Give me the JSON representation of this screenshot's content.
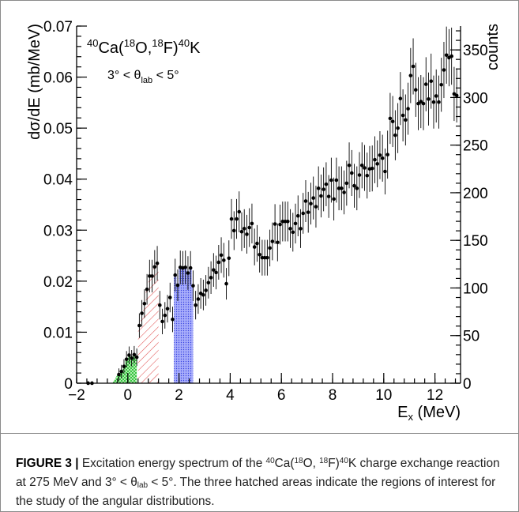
{
  "chart_data": {
    "type": "scatter",
    "title_reaction": {
      "a": "40",
      "b": "Ca(",
      "c": "18",
      "d": "O,",
      "e": "18",
      "f": "F)",
      "g": "40",
      "h": "K"
    },
    "angle_label": {
      "pre": "3° < θ",
      "sub": "lab",
      "post": " < 5°"
    },
    "xlabel": {
      "main": "E",
      "sub": "x",
      "unit": " (MeV)"
    },
    "ylabel": "dσ/dE (mb/MeV)",
    "y2label": "counts",
    "xlim": [
      -2,
      13
    ],
    "ylim": [
      0,
      0.07
    ],
    "y2lim": [
      0,
      375
    ],
    "x_ticks": [
      -2,
      0,
      2,
      4,
      6,
      8,
      10,
      12
    ],
    "y_ticks": [
      0,
      0.01,
      0.02,
      0.03,
      0.04,
      0.05,
      0.06,
      0.07
    ],
    "y_tick_labels": [
      "0",
      "0.01",
      "0.02",
      "0.03",
      "0.04",
      "0.05",
      "0.06",
      "0.07"
    ],
    "y2_ticks": [
      0,
      50,
      100,
      150,
      200,
      250,
      300,
      350
    ],
    "grid": false,
    "hatched_regions": [
      {
        "x": [
          -0.6,
          0.35
        ],
        "color": "#1fbf2a",
        "pattern": "cross"
      },
      {
        "x": [
          0.4,
          1.2
        ],
        "color": "#e05050",
        "pattern": "diagonal"
      },
      {
        "x": [
          1.8,
          2.55
        ],
        "color": "#3a45e0",
        "pattern": "dots"
      }
    ],
    "points": [
      [
        -1.55,
        0.0,
        0.0004
      ],
      [
        -1.4,
        0.0,
        0.0004
      ],
      [
        -0.35,
        0.0017,
        0.0012
      ],
      [
        -0.25,
        0.0023,
        0.0013
      ],
      [
        -0.15,
        0.0033,
        0.0014
      ],
      [
        -0.05,
        0.0047,
        0.0016
      ],
      [
        0.05,
        0.0055,
        0.0017
      ],
      [
        0.15,
        0.0049,
        0.0016
      ],
      [
        0.25,
        0.0056,
        0.0017
      ],
      [
        0.35,
        0.0051,
        0.0017
      ],
      [
        0.45,
        0.0113,
        0.0024
      ],
      [
        0.55,
        0.0137,
        0.0026
      ],
      [
        0.65,
        0.0156,
        0.0028
      ],
      [
        0.75,
        0.0184,
        0.003
      ],
      [
        0.85,
        0.021,
        0.0032
      ],
      [
        0.95,
        0.021,
        0.0032
      ],
      [
        1.05,
        0.0228,
        0.0033
      ],
      [
        1.15,
        0.0235,
        0.0034
      ],
      [
        1.25,
        0.0153,
        0.0028
      ],
      [
        1.35,
        0.0121,
        0.0025
      ],
      [
        1.45,
        0.0133,
        0.0026
      ],
      [
        1.55,
        0.0146,
        0.0027
      ],
      [
        1.65,
        0.0168,
        0.0029
      ],
      [
        1.75,
        0.0125,
        0.0025
      ],
      [
        1.85,
        0.0212,
        0.0032
      ],
      [
        1.95,
        0.0192,
        0.0031
      ],
      [
        2.05,
        0.0227,
        0.0033
      ],
      [
        2.15,
        0.0226,
        0.0033
      ],
      [
        2.25,
        0.0227,
        0.0033
      ],
      [
        2.35,
        0.0216,
        0.0033
      ],
      [
        2.45,
        0.0226,
        0.0033
      ],
      [
        2.55,
        0.0191,
        0.003
      ],
      [
        2.65,
        0.0153,
        0.0028
      ],
      [
        2.75,
        0.0165,
        0.0029
      ],
      [
        2.85,
        0.0176,
        0.003
      ],
      [
        2.95,
        0.0173,
        0.003
      ],
      [
        3.05,
        0.0182,
        0.003
      ],
      [
        3.15,
        0.0197,
        0.0031
      ],
      [
        3.25,
        0.0207,
        0.0032
      ],
      [
        3.35,
        0.0222,
        0.0033
      ],
      [
        3.45,
        0.0217,
        0.0033
      ],
      [
        3.55,
        0.0237,
        0.0034
      ],
      [
        3.65,
        0.0251,
        0.0035
      ],
      [
        3.75,
        0.0241,
        0.0034
      ],
      [
        3.85,
        0.0195,
        0.0031
      ],
      [
        3.95,
        0.0245,
        0.0035
      ],
      [
        4.05,
        0.0322,
        0.0039
      ],
      [
        4.15,
        0.0299,
        0.0038
      ],
      [
        4.25,
        0.0322,
        0.0039
      ],
      [
        4.35,
        0.0336,
        0.004
      ],
      [
        4.45,
        0.0297,
        0.0038
      ],
      [
        4.55,
        0.0303,
        0.0038
      ],
      [
        4.65,
        0.0292,
        0.0038
      ],
      [
        4.75,
        0.0305,
        0.0038
      ],
      [
        4.85,
        0.0313,
        0.0039
      ],
      [
        4.95,
        0.0267,
        0.0036
      ],
      [
        5.05,
        0.0274,
        0.0036
      ],
      [
        5.15,
        0.0252,
        0.0035
      ],
      [
        5.25,
        0.0246,
        0.0035
      ],
      [
        5.35,
        0.0246,
        0.0035
      ],
      [
        5.45,
        0.0246,
        0.0035
      ],
      [
        5.55,
        0.0265,
        0.0036
      ],
      [
        5.65,
        0.0278,
        0.0037
      ],
      [
        5.75,
        0.0312,
        0.0039
      ],
      [
        5.85,
        0.0276,
        0.0037
      ],
      [
        5.95,
        0.0311,
        0.0039
      ],
      [
        6.05,
        0.0317,
        0.0039
      ],
      [
        6.15,
        0.0317,
        0.0039
      ],
      [
        6.25,
        0.0317,
        0.0039
      ],
      [
        6.35,
        0.0303,
        0.0038
      ],
      [
        6.45,
        0.0296,
        0.0038
      ],
      [
        6.55,
        0.0313,
        0.0039
      ],
      [
        6.65,
        0.0328,
        0.004
      ],
      [
        6.75,
        0.0303,
        0.0038
      ],
      [
        6.85,
        0.0333,
        0.004
      ],
      [
        6.95,
        0.0357,
        0.0041
      ],
      [
        7.05,
        0.0335,
        0.004
      ],
      [
        7.15,
        0.0352,
        0.0041
      ],
      [
        7.25,
        0.0363,
        0.0042
      ],
      [
        7.35,
        0.0346,
        0.0041
      ],
      [
        7.45,
        0.0382,
        0.0043
      ],
      [
        7.55,
        0.0367,
        0.0042
      ],
      [
        7.65,
        0.038,
        0.0043
      ],
      [
        7.75,
        0.039,
        0.0043
      ],
      [
        7.85,
        0.0366,
        0.0042
      ],
      [
        7.95,
        0.0398,
        0.0044
      ],
      [
        8.05,
        0.0361,
        0.0042
      ],
      [
        8.15,
        0.0398,
        0.0044
      ],
      [
        8.25,
        0.0382,
        0.0043
      ],
      [
        8.35,
        0.0382,
        0.0043
      ],
      [
        8.45,
        0.0374,
        0.0043
      ],
      [
        8.55,
        0.0392,
        0.0044
      ],
      [
        8.65,
        0.0427,
        0.0045
      ],
      [
        8.75,
        0.0412,
        0.0045
      ],
      [
        8.85,
        0.0387,
        0.0043
      ],
      [
        8.95,
        0.0382,
        0.0043
      ],
      [
        9.05,
        0.0408,
        0.0045
      ],
      [
        9.15,
        0.0427,
        0.0045
      ],
      [
        9.25,
        0.0422,
        0.0045
      ],
      [
        9.35,
        0.0407,
        0.0045
      ],
      [
        9.45,
        0.042,
        0.0045
      ],
      [
        9.55,
        0.0421,
        0.0045
      ],
      [
        9.65,
        0.0438,
        0.0046
      ],
      [
        9.75,
        0.043,
        0.0046
      ],
      [
        9.85,
        0.0447,
        0.0047
      ],
      [
        9.95,
        0.0441,
        0.0046
      ],
      [
        10.05,
        0.0415,
        0.0045
      ],
      [
        10.15,
        0.0448,
        0.0047
      ],
      [
        10.25,
        0.0519,
        0.005
      ],
      [
        10.35,
        0.0513,
        0.005
      ],
      [
        10.45,
        0.0486,
        0.0049
      ],
      [
        10.55,
        0.05,
        0.0049
      ],
      [
        10.65,
        0.0558,
        0.0052
      ],
      [
        10.75,
        0.0525,
        0.0051
      ],
      [
        10.85,
        0.0516,
        0.005
      ],
      [
        10.95,
        0.0538,
        0.0051
      ],
      [
        11.05,
        0.0603,
        0.0054
      ],
      [
        11.15,
        0.0621,
        0.0055
      ],
      [
        11.25,
        0.0575,
        0.0053
      ],
      [
        11.35,
        0.0548,
        0.0052
      ],
      [
        11.45,
        0.0552,
        0.0052
      ],
      [
        11.55,
        0.0548,
        0.0052
      ],
      [
        11.65,
        0.0586,
        0.0053
      ],
      [
        11.75,
        0.0557,
        0.0052
      ],
      [
        11.85,
        0.0592,
        0.0054
      ],
      [
        11.95,
        0.0551,
        0.0052
      ],
      [
        12.05,
        0.0563,
        0.0052
      ],
      [
        12.15,
        0.0551,
        0.0052
      ],
      [
        12.25,
        0.0585,
        0.0053
      ],
      [
        12.35,
        0.0614,
        0.0055
      ],
      [
        12.45,
        0.0643,
        0.0056
      ],
      [
        12.55,
        0.0638,
        0.0056
      ],
      [
        12.65,
        0.0641,
        0.0056
      ],
      [
        12.75,
        0.0567,
        0.0053
      ],
      [
        12.85,
        0.0564,
        0.0053
      ]
    ]
  },
  "caption": {
    "label": "FIGURE 3 |",
    "t1": " Excitation energy spectrum of the ",
    "s1": "40",
    "t2": "Ca(",
    "s2": "18",
    "t3": "O, ",
    "s3": "18",
    "t4": "F)",
    "s4": "40",
    "t5": "K charge exchange reaction at 275 MeV and 3° < θ",
    "sub1": "lab",
    "t6": " < 5°. The three hatched areas indicate the regions of interest for the study of the angular distributions."
  }
}
